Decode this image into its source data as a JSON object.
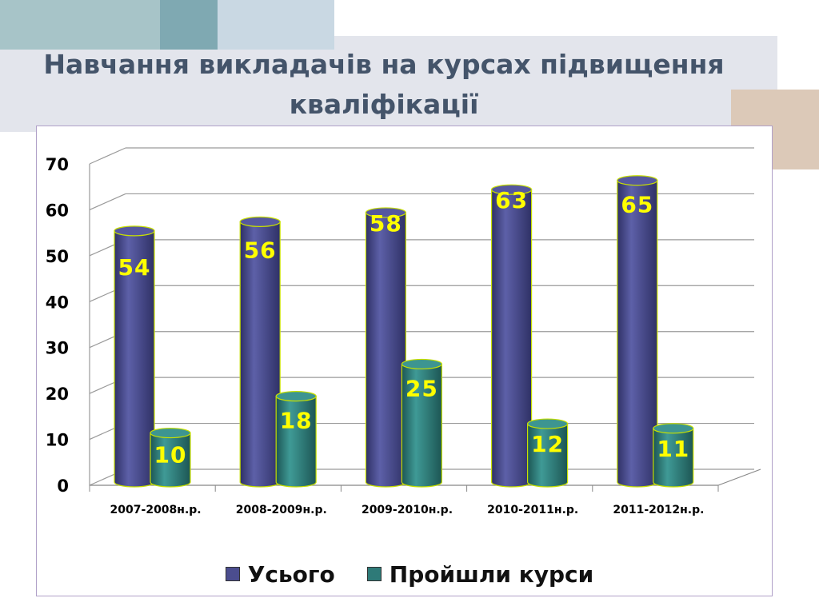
{
  "page": {
    "title": "Навчання викладачів на курсах підвищення кваліфікації"
  },
  "colors": {
    "total": "#4b4d8e",
    "completed": "#2e7a78",
    "label_fill": "#ffff00"
  },
  "chart_data": {
    "type": "bar",
    "title": "",
    "xlabel": "",
    "ylabel": "",
    "categories": [
      "2007-2008н.р.",
      "2008-2009н.р.",
      "2009-2010н.р.",
      "2010-2011н.р.",
      "2011-2012н.р."
    ],
    "series": [
      {
        "name": "Усього",
        "values": [
          54,
          56,
          58,
          63,
          65
        ]
      },
      {
        "name": "Пройшли курси",
        "values": [
          10,
          18,
          25,
          12,
          11
        ]
      }
    ],
    "ylim": [
      0,
      70
    ],
    "yticks": [
      "0",
      "10",
      "20",
      "30",
      "40",
      "50",
      "60",
      "70"
    ],
    "grid": true,
    "legend_position": "bottom",
    "style": "3d-cylinder"
  }
}
